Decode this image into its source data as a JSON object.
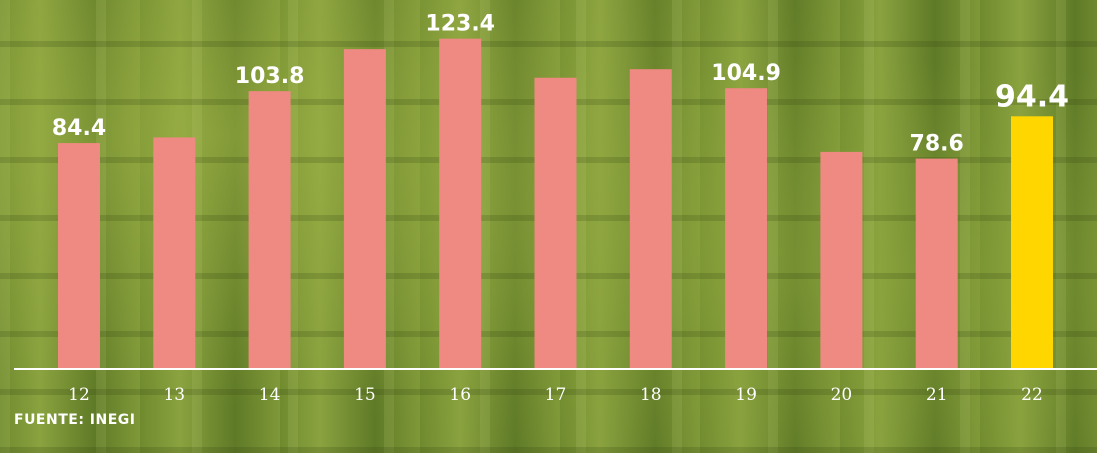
{
  "chart_data": {
    "type": "bar",
    "categories": [
      "12",
      "13",
      "14",
      "15",
      "16",
      "17",
      "18",
      "19",
      "20",
      "21",
      "22"
    ],
    "values": [
      84.4,
      86.5,
      103.8,
      119.5,
      123.4,
      108.8,
      112.0,
      104.9,
      81.1,
      78.6,
      94.4
    ],
    "labeled_values": [
      "84.4",
      "",
      "103.8",
      "",
      "123.4",
      "",
      "",
      "104.9",
      "",
      "78.6",
      "94.4"
    ],
    "highlight_index": 10,
    "ylim": [
      0,
      130
    ],
    "grid": false,
    "title": "",
    "xlabel": "",
    "ylabel": ""
  },
  "colors": {
    "bar": "#ee8a82",
    "highlight": "#ffd600",
    "axis": "#ffffff",
    "label": "#ffffff"
  },
  "source": "FUENTE: INEGI"
}
